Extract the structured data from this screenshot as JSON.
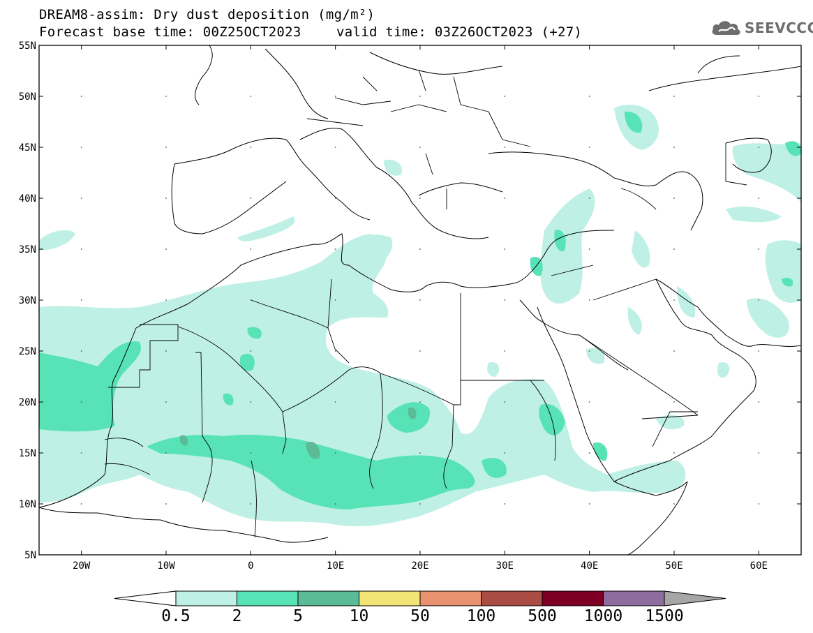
{
  "header": {
    "line1": "DREAM8-assim: Dry dust deposition (mg/m²)",
    "line2": "Forecast base time: 00Z25OCT2023",
    "line2_right": "valid time: 03Z26OCT2023 (+27)"
  },
  "logo": {
    "text": "SEEVCCC",
    "icon": "cloud-logo-icon"
  },
  "map": {
    "lat_labels": [
      "55N",
      "50N",
      "45N",
      "40N",
      "35N",
      "30N",
      "25N",
      "20N",
      "15N",
      "10N",
      "5N"
    ],
    "lon_labels": [
      "20W",
      "10W",
      "0",
      "10E",
      "20E",
      "30E",
      "40E",
      "50E",
      "60E"
    ],
    "lat_range": [
      5,
      55
    ],
    "lon_range": [
      -25,
      65
    ]
  },
  "colorbar": {
    "labels": [
      "0.5",
      "2",
      "5",
      "10",
      "50",
      "100",
      "500",
      "1000",
      "1500"
    ],
    "colors": [
      "#bff0e6",
      "#57e3b6",
      "#5abb96",
      "#f2e576",
      "#e99270",
      "#a94d44",
      "#7d0024",
      "#8e6c9e"
    ],
    "under_color": "#ffffff",
    "over_color": "#a6a6a6"
  }
}
